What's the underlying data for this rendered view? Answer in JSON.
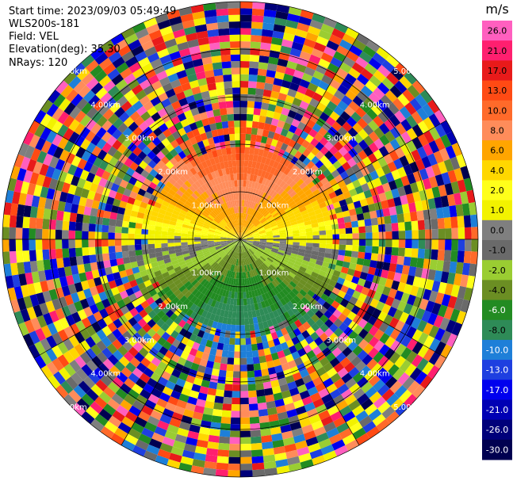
{
  "header": {
    "start_time": "Start time: 2023/09/03 05:49:49",
    "instrument": "WLS200s-181",
    "field": "Field: VEL",
    "elevation": "Elevation(deg): 35.30",
    "nrays": "NRays: 120"
  },
  "chart_data": {
    "type": "heatmap",
    "projection": "polar (PPI)",
    "field": "VEL",
    "nrays": 120,
    "range_rings_km": [
      1,
      2,
      3,
      4,
      5
    ],
    "ring_labels": [
      "1.00km",
      "2.00km",
      "3.00km",
      "4.00km",
      "5.00km"
    ],
    "colorbar": {
      "unit": "m/s",
      "levels": [
        26.0,
        21.0,
        17.0,
        13.0,
        10.0,
        8.0,
        6.0,
        4.0,
        2.0,
        1.0,
        0.0,
        -1.0,
        -2.0,
        -4.0,
        -6.0,
        -8.0,
        -10.0,
        -13.0,
        -17.0,
        -21.0,
        -26.0,
        -30.0
      ],
      "tick_labels": [
        "26.0",
        "21.0",
        "17.0",
        "13.0",
        "10.0",
        "8.0",
        "6.0",
        "4.0",
        "2.0",
        "1.0",
        "0.0",
        "-1.0",
        "-2.0",
        "-4.0",
        "-6.0",
        "-8.0",
        "-10.0",
        "-13.0",
        "-17.0",
        "-21.0",
        "-26.0",
        "-30.0"
      ],
      "colors": [
        "#ff5fbf",
        "#ff1f6f",
        "#e81a1a",
        "#ff4a14",
        "#ff6a2a",
        "#ff8c5a",
        "#ffa500",
        "#ffd700",
        "#ffff1a",
        "#f2f200",
        "#7f7f7f",
        "#6a6a6a",
        "#9acd32",
        "#6b8e23",
        "#228b22",
        "#2e8b57",
        "#1e7fd8",
        "#1e3fe0",
        "#0000ee",
        "#0000b4",
        "#00007a",
        "#000050"
      ]
    },
    "pattern": "Inner ~2 km: approaching (negative, blue/green) to the south, receding (positive, orange/yellow) to the north; beyond ~2.5 km noisy values spanning the full scale."
  }
}
